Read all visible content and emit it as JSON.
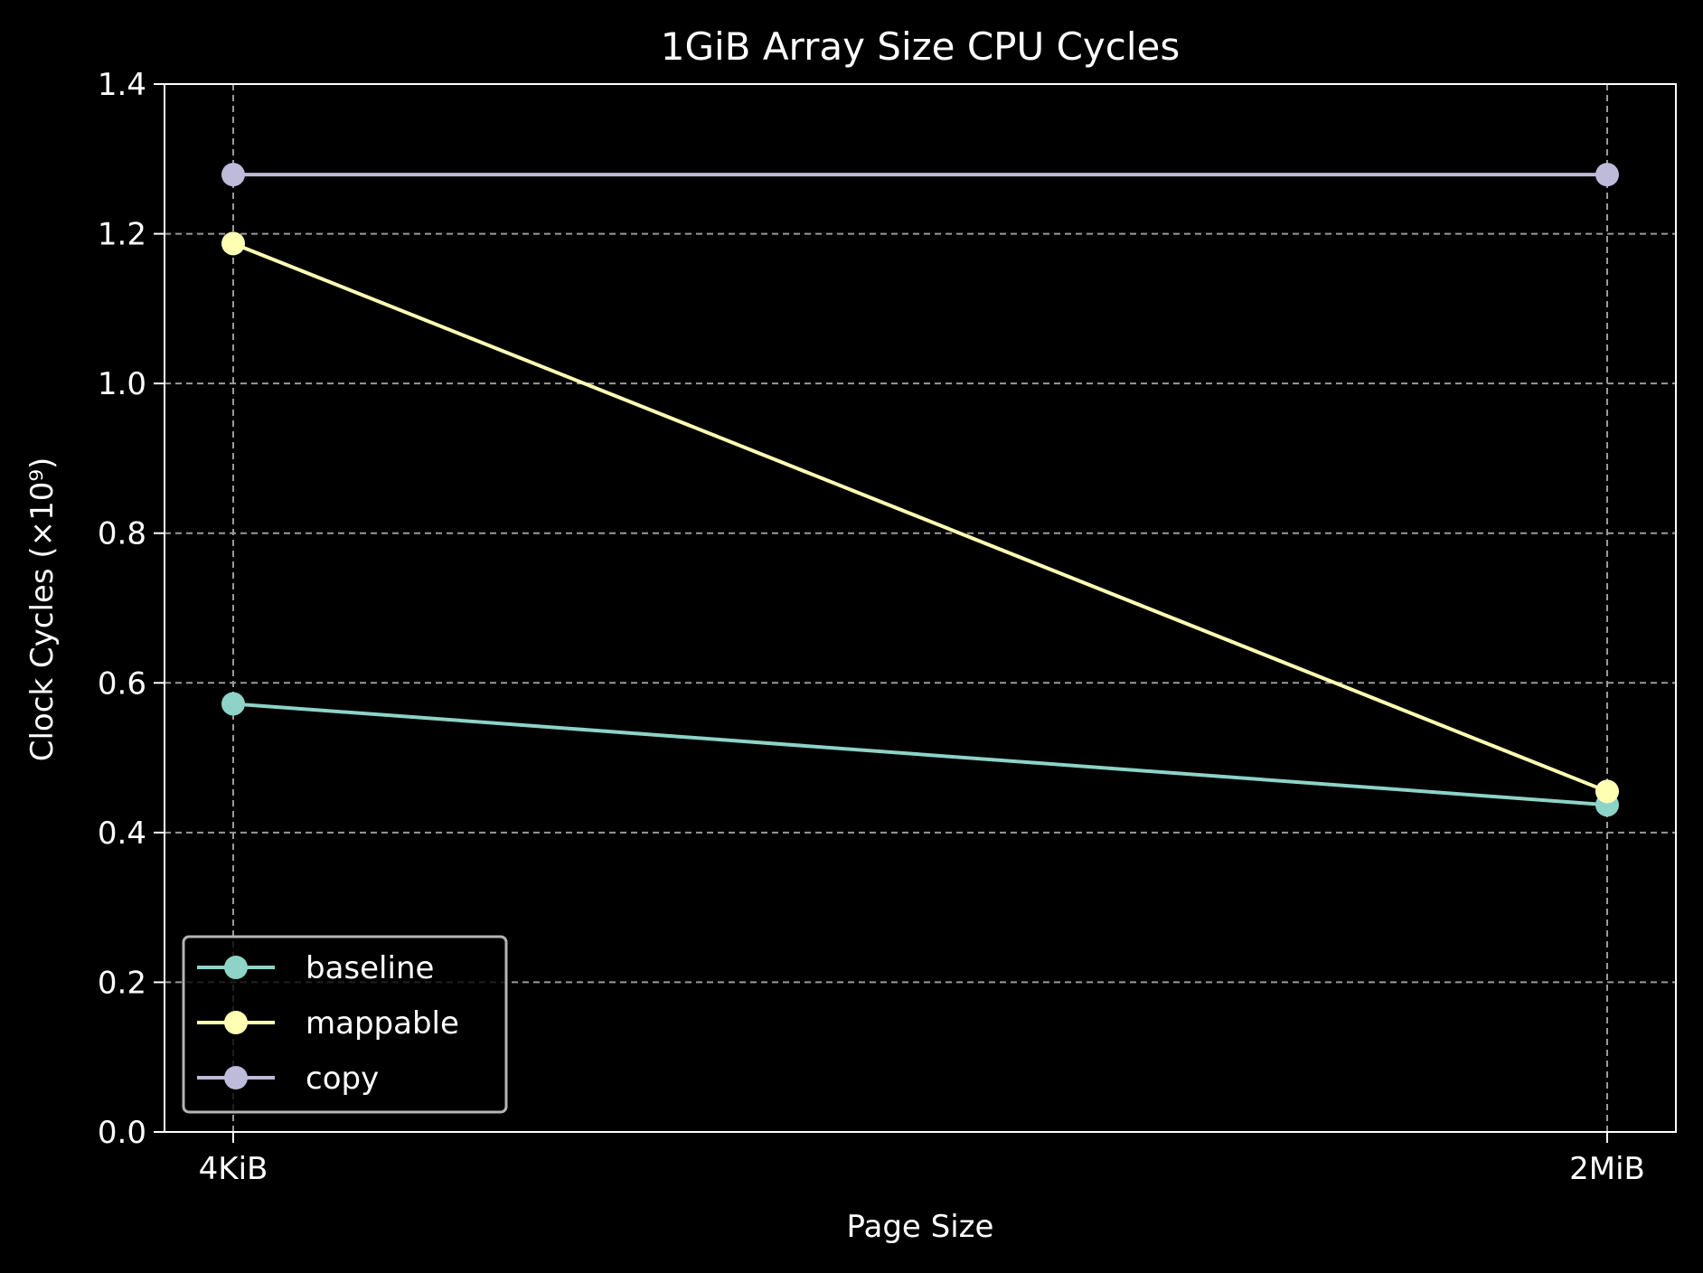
{
  "chart_data": {
    "type": "line",
    "title": "1GiB Array Size CPU Cycles",
    "xlabel": "Page Size",
    "ylabel": "Clock Cycles (×10⁹)",
    "categories": [
      "4KiB",
      "2MiB"
    ],
    "ylim": [
      0,
      1.4
    ],
    "yticks": [
      "0.0",
      "0.2",
      "0.4",
      "0.6",
      "0.8",
      "1.0",
      "1.2",
      "1.4"
    ],
    "grid": true,
    "legend_position": "lower-left",
    "series": [
      {
        "name": "baseline",
        "values": [
          0.572,
          0.437
        ],
        "color": "#8dd3c7"
      },
      {
        "name": "mappable",
        "values": [
          1.187,
          0.455
        ],
        "color": "#ffffb3"
      },
      {
        "name": "copy",
        "values": [
          1.279,
          1.279
        ],
        "color": "#bebada"
      }
    ]
  }
}
